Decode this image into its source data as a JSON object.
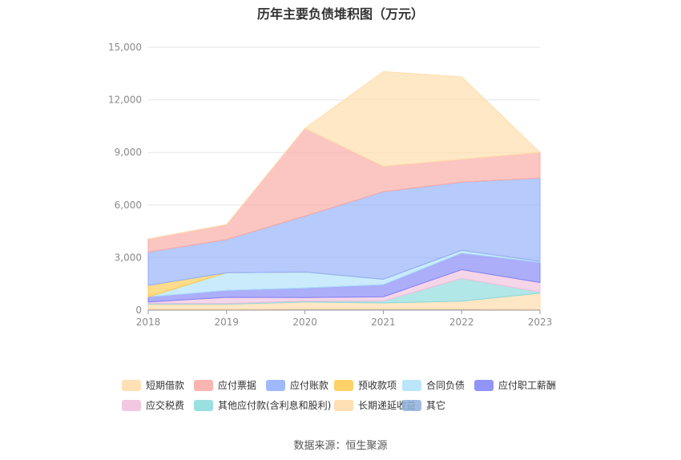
{
  "chart_data": {
    "type": "area",
    "stacked": true,
    "title": "历年主要负债堆积图（万元）",
    "categories": [
      "2018",
      "2019",
      "2020",
      "2021",
      "2022",
      "2023"
    ],
    "yticks": [
      "0",
      "3,000",
      "6,000",
      "9,000",
      "12,000",
      "15,000"
    ],
    "ylim": [
      0,
      15000
    ],
    "grid": true,
    "legend_position": "bottom",
    "series": [
      {
        "name": "其它",
        "color": "#8fb0dc",
        "values": [
          40,
          40,
          60,
          60,
          60,
          20
        ]
      },
      {
        "name": "长期递延收益",
        "color": "#ffd9a6",
        "values": [
          300,
          300,
          400,
          350,
          450,
          950
        ]
      },
      {
        "name": "其他应付款(含利息和股利)",
        "color": "#88dada",
        "values": [
          40,
          40,
          60,
          100,
          1300,
          60
        ]
      },
      {
        "name": "应交税费",
        "color": "#f0bedc",
        "values": [
          80,
          350,
          200,
          250,
          500,
          550
        ]
      },
      {
        "name": "应付职工薪酬",
        "color": "#7f83f7",
        "values": [
          300,
          400,
          550,
          700,
          950,
          1150
        ]
      },
      {
        "name": "合同负债",
        "color": "#aee0fa",
        "values": [
          0,
          1000,
          900,
          300,
          150,
          60
        ]
      },
      {
        "name": "预收款项",
        "color": "#ffc94d",
        "values": [
          650,
          0,
          0,
          0,
          0,
          0
        ]
      },
      {
        "name": "应付账款",
        "color": "#8fadfb",
        "values": [
          1900,
          1900,
          3200,
          5000,
          3900,
          4750
        ]
      },
      {
        "name": "应付票据",
        "color": "#f9a8a2",
        "values": [
          750,
          850,
          5000,
          1450,
          1300,
          1460
        ]
      },
      {
        "name": "短期借款",
        "color": "#ffdca8",
        "values": [
          0,
          0,
          0,
          5400,
          4700,
          0
        ]
      }
    ],
    "legend_order": [
      "短期借款",
      "应付票据",
      "应付账款",
      "预收款项",
      "合同负债",
      "应付职工薪酬",
      "应交税费",
      "其他应付款(含利息和股利)",
      "长期递延收益",
      "其它"
    ]
  },
  "source": "数据来源：恒生聚源"
}
